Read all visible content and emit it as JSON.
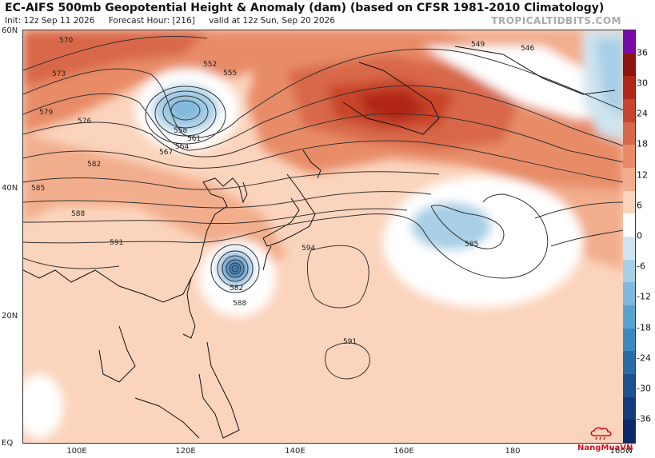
{
  "header": {
    "title": "EC-AIFS 500mb Geopotential Height & Anomaly (dam) (based on CFSR 1981-2010 Climatology)",
    "init": "Init: 12z Sep 11 2026",
    "forecast_hour": "Forecast Hour: [216]",
    "valid": "valid at 12z Sun, Sep 20 2026",
    "brand": "TROPICALTIDBITS.COM"
  },
  "map": {
    "lat_labels": [
      "60N",
      "40N",
      "20N",
      "EQ"
    ],
    "lon_labels": [
      "100E",
      "120E",
      "140E",
      "160E",
      "180",
      "160W"
    ],
    "contour_labels": [
      "570",
      "573",
      "576",
      "579",
      "582",
      "585",
      "588",
      "591",
      "552",
      "555",
      "558",
      "561",
      "564",
      "567",
      "549",
      "546",
      "594",
      "582",
      "588",
      "585",
      "591"
    ]
  },
  "colorbar": {
    "labels": [
      "36",
      "30",
      "24",
      "18",
      "12",
      "6",
      "0",
      "-6",
      "-12",
      "-18",
      "-24",
      "-30",
      "-36"
    ],
    "colors": [
      "#7a0aa8",
      "#8d1410",
      "#b02818",
      "#c8442c",
      "#d86848",
      "#e88c68",
      "#f2ad8c",
      "#fbd4bd",
      "#ffffff",
      "#cfe4f0",
      "#a8cfe6",
      "#7fb8dc",
      "#5aa2d0",
      "#3c88c0",
      "#2a6ca8",
      "#1e5092",
      "#143c7c",
      "#0c2866"
    ]
  },
  "watermark": {
    "text": "NangMuaVN"
  }
}
